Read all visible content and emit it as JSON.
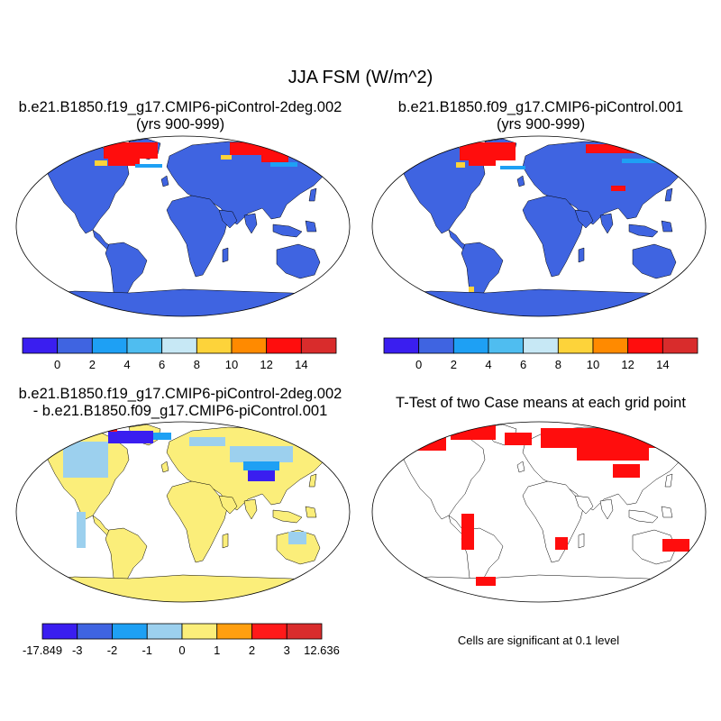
{
  "title": "JJA FSM (W/m^2)",
  "panels": {
    "top_left": {
      "line1": "b.e21.B1850.f19_g17.CMIP6-piControl-2deg.002",
      "line2": "(yrs 900-999)"
    },
    "top_right": {
      "line1": "b.e21.B1850.f09_g17.CMIP6-piControl.001",
      "line2": "(yrs 900-999)"
    },
    "bottom_left": {
      "line1": "b.e21.B1850.f19_g17.CMIP6-piControl-2deg.002",
      "line2": "- b.e21.B1850.f09_g17.CMIP6-piControl.001"
    },
    "bottom_right": {
      "line1": "T-Test of two Case means at each grid point"
    }
  },
  "colorbars": {
    "case": {
      "colors": [
        "#3a1ef0",
        "#3f64e1",
        "#1ea0f4",
        "#4fbdf0",
        "#c7e8f5",
        "#fdd33a",
        "#ff8a00",
        "#ff0d0d",
        "#d92c2c"
      ],
      "labels": [
        "0",
        "2",
        "4",
        "6",
        "8",
        "10",
        "12",
        "14"
      ]
    },
    "diff": {
      "colors": [
        "#3a1ef0",
        "#3f64e1",
        "#1ea0f4",
        "#9cd0ee",
        "#fbee7a",
        "#ff9f10",
        "#ff1a1a",
        "#d92c2c"
      ],
      "labels": [
        "-17.849",
        "-3",
        "-2",
        "-1",
        "0",
        "1",
        "2",
        "3",
        "12.636"
      ]
    }
  },
  "significance_note": "Cells are significant at 0.1 level",
  "colors": {
    "land_case": "#3f64e1",
    "snow_high": "#ff0d0d",
    "diff_land": "#fbee7a",
    "diff_light": "#9cd0ee",
    "sig_cells": "#ff0d0d"
  }
}
